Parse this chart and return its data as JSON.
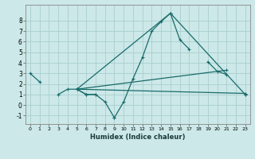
{
  "xlabel": "Humidex (Indice chaleur)",
  "x_ticks": [
    0,
    1,
    2,
    3,
    4,
    5,
    6,
    7,
    8,
    9,
    10,
    11,
    12,
    13,
    14,
    15,
    16,
    17,
    18,
    19,
    20,
    21,
    22,
    23
  ],
  "xlim": [
    -0.5,
    23.5
  ],
  "ylim": [
    -1.8,
    9.5
  ],
  "y_ticks": [
    -1,
    0,
    1,
    2,
    3,
    4,
    5,
    6,
    7,
    8
  ],
  "bg_color": "#cce8e8",
  "grid_color": "#aacece",
  "line_color": "#1a6b6b",
  "series": [
    {
      "comment": "main zigzag line: 0->1->3->4->5->6->7 then 9->10->11 then 14->15->16->17 then 19->20->21 then 23",
      "segments": [
        {
          "x": [
            0,
            1
          ],
          "y": [
            3.0,
            2.2
          ]
        },
        {
          "x": [
            3,
            4,
            5,
            6,
            7
          ],
          "y": [
            1.0,
            1.5,
            1.5,
            1.0,
            1.0
          ]
        },
        {
          "x": [
            5,
            6,
            7,
            8,
            9
          ],
          "y": [
            1.5,
            1.0,
            1.0,
            0.3,
            -1.2
          ]
        },
        {
          "x": [
            9,
            10,
            11,
            12,
            13,
            14,
            15
          ],
          "y": [
            -1.2,
            0.3,
            2.5,
            4.5,
            7.0,
            7.9,
            8.7
          ]
        },
        {
          "x": [
            15,
            16,
            17
          ],
          "y": [
            8.7,
            6.2,
            5.3
          ]
        },
        {
          "x": [
            19,
            20,
            21
          ],
          "y": [
            4.1,
            3.2,
            2.9
          ]
        },
        {
          "x": [
            23
          ],
          "y": [
            1.0
          ]
        }
      ]
    }
  ],
  "straight_lines": [
    {
      "x": [
        5,
        23
      ],
      "y": [
        1.5,
        1.1
      ]
    },
    {
      "x": [
        5,
        21
      ],
      "y": [
        1.5,
        3.3
      ]
    },
    {
      "x": [
        5,
        15,
        23
      ],
      "y": [
        1.5,
        8.7,
        1.0
      ]
    }
  ]
}
